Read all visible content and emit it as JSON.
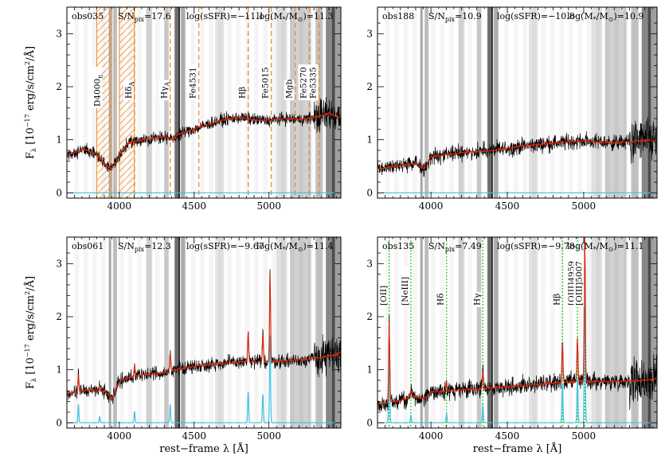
{
  "chart_data": [
    {
      "type": "line",
      "panel": "top-left",
      "object_id": "obs035",
      "sn_label": "S/N",
      "sn_sub": "pix",
      "sn_value": "=17.6",
      "ssfr_text": "log(sSFR)=−11.1",
      "mass_pre": "log(M",
      "mass_sub1": "*",
      "mass_mid": "/M",
      "mass_sub2": "⊙",
      "mass_post": ")=11.3",
      "xlim": [
        3650,
        5480
      ],
      "ylim": [
        -0.1,
        3.5
      ],
      "xticks": [
        4000,
        4500,
        5000
      ],
      "yticks": [
        0,
        1,
        2,
        3
      ],
      "ylabel_main": "F",
      "ylabel_sub": "λ",
      "ylabel_rest": " [10",
      "ylabel_exp": "−17",
      "ylabel_tail": " erg/s/cm",
      "ylabel_exp2": "2",
      "ylabel_end": "/Å]",
      "xlabel": "",
      "continuum_knots": [
        [
          3660,
          0.72
        ],
        [
          3760,
          0.82
        ],
        [
          3840,
          0.74
        ],
        [
          3900,
          0.55
        ],
        [
          3950,
          0.45
        ],
        [
          3980,
          0.6
        ],
        [
          4050,
          0.92
        ],
        [
          4100,
          0.97
        ],
        [
          4200,
          1.02
        ],
        [
          4300,
          1.06
        ],
        [
          4360,
          1.0
        ],
        [
          4400,
          1.12
        ],
        [
          4500,
          1.2
        ],
        [
          4600,
          1.3
        ],
        [
          4700,
          1.38
        ],
        [
          4800,
          1.42
        ],
        [
          4900,
          1.38
        ],
        [
          5000,
          1.36
        ],
        [
          5100,
          1.4
        ],
        [
          5200,
          1.38
        ],
        [
          5300,
          1.42
        ],
        [
          5400,
          1.5
        ],
        [
          5480,
          1.42
        ]
      ],
      "noise": 0.07,
      "emission_lines": [],
      "hatched_bands": [
        [
          3850,
          3950
        ],
        [
          4000,
          4100
        ]
      ],
      "orange_lines": [
        {
          "x": 4102,
          "label": "Hδ",
          "sub": "A"
        },
        {
          "x": 4340,
          "label": "Hγ",
          "sub": "A"
        },
        {
          "x": 4531,
          "label": "Fe4531",
          "sub": ""
        },
        {
          "x": 4861,
          "label": "Hβ",
          "sub": ""
        },
        {
          "x": 5015,
          "label": "Fe5015",
          "sub": ""
        },
        {
          "x": 5175,
          "label": "Mgb",
          "sub": ""
        },
        {
          "x": 5270,
          "label": "Fe5270",
          "sub": ""
        },
        {
          "x": 5335,
          "label": "Fe5335",
          "sub": ""
        }
      ],
      "band_label": {
        "label": "D4000",
        "sub": "n",
        "x": 3860
      },
      "green_lines": []
    },
    {
      "type": "line",
      "panel": "top-right",
      "object_id": "obs188",
      "sn_label": "S/N",
      "sn_sub": "pix",
      "sn_value": "=10.9",
      "ssfr_text": "log(sSFR)=−10.8",
      "mass_pre": "log(M",
      "mass_sub1": "*",
      "mass_mid": "/M",
      "mass_sub2": "⊙",
      "mass_post": ")=10.9",
      "xlim": [
        3650,
        5480
      ],
      "ylim": [
        -0.1,
        3.5
      ],
      "xticks": [
        4000,
        4500,
        5000
      ],
      "yticks": [
        0,
        1,
        2,
        3
      ],
      "xlabel": "",
      "continuum_knots": [
        [
          3660,
          0.45
        ],
        [
          3800,
          0.52
        ],
        [
          3900,
          0.55
        ],
        [
          3960,
          0.45
        ],
        [
          4000,
          0.68
        ],
        [
          4200,
          0.76
        ],
        [
          4400,
          0.8
        ],
        [
          4600,
          0.88
        ],
        [
          4800,
          0.94
        ],
        [
          5000,
          0.98
        ],
        [
          5200,
          0.94
        ],
        [
          5350,
          0.98
        ],
        [
          5480,
          1.0
        ]
      ],
      "noise": 0.09,
      "emission_lines": [],
      "hatched_bands": [],
      "orange_lines": [],
      "green_lines": []
    },
    {
      "type": "line",
      "panel": "bottom-left",
      "object_id": "obs061",
      "sn_label": "S/N",
      "sn_sub": "pix",
      "sn_value": "=12.3",
      "ssfr_text": "log(sSFR)=−9.67",
      "mass_pre": "log(M",
      "mass_sub1": "*",
      "mass_mid": "/M",
      "mass_sub2": "⊙",
      "mass_post": ")=11.4",
      "xlim": [
        3650,
        5480
      ],
      "ylim": [
        -0.1,
        3.5
      ],
      "xticks": [
        4000,
        4500,
        5000
      ],
      "yticks": [
        0,
        1,
        2,
        3
      ],
      "ylabel_main": "F",
      "ylabel_sub": "λ",
      "ylabel_rest": " [10",
      "ylabel_exp": "−17",
      "ylabel_tail": " erg/s/cm",
      "ylabel_exp2": "2",
      "ylabel_end": "/Å]",
      "xlabel_main": "rest−frame λ [Å]",
      "continuum_knots": [
        [
          3660,
          0.55
        ],
        [
          3800,
          0.62
        ],
        [
          3900,
          0.6
        ],
        [
          3950,
          0.45
        ],
        [
          4000,
          0.78
        ],
        [
          4100,
          0.88
        ],
        [
          4300,
          0.95
        ],
        [
          4400,
          1.02
        ],
        [
          4600,
          1.1
        ],
        [
          4800,
          1.15
        ],
        [
          5000,
          1.15
        ],
        [
          5200,
          1.18
        ],
        [
          5400,
          1.25
        ],
        [
          5480,
          1.32
        ]
      ],
      "noise": 0.08,
      "emission_lines": [
        [
          3727,
          0.35
        ],
        [
          3869,
          0.12
        ],
        [
          4102,
          0.22
        ],
        [
          4340,
          0.35
        ],
        [
          4861,
          0.6
        ],
        [
          4959,
          0.55
        ],
        [
          5007,
          1.72
        ]
      ],
      "hatched_bands": [],
      "orange_lines": [],
      "green_lines": []
    },
    {
      "type": "line",
      "panel": "bottom-right",
      "object_id": "obs135",
      "sn_label": "S/N",
      "sn_sub": "pix",
      "sn_value": "=7.49",
      "ssfr_text": "log(sSFR)=−9.78",
      "mass_pre": "log(M",
      "mass_sub1": "*",
      "mass_mid": "/M",
      "mass_sub2": "⊙",
      "mass_post": ")=11.1",
      "xlim": [
        3650,
        5480
      ],
      "ylim": [
        -0.1,
        3.5
      ],
      "xticks": [
        4000,
        4500,
        5000
      ],
      "yticks": [
        0,
        1,
        2,
        3
      ],
      "xlabel_main": "rest−frame λ [Å]",
      "continuum_knots": [
        [
          3660,
          0.35
        ],
        [
          3800,
          0.42
        ],
        [
          3900,
          0.5
        ],
        [
          3960,
          0.45
        ],
        [
          4000,
          0.58
        ],
        [
          4200,
          0.62
        ],
        [
          4400,
          0.66
        ],
        [
          4600,
          0.7
        ],
        [
          4800,
          0.75
        ],
        [
          5000,
          0.78
        ],
        [
          5200,
          0.78
        ],
        [
          5400,
          0.8
        ],
        [
          5480,
          0.82
        ]
      ],
      "noise": 0.1,
      "emission_lines": [
        [
          3727,
          1.6
        ],
        [
          3869,
          0.15
        ],
        [
          4102,
          0.18
        ],
        [
          4340,
          0.35
        ],
        [
          4861,
          0.78
        ],
        [
          4959,
          0.85
        ],
        [
          5007,
          2.95
        ]
      ],
      "hatched_bands": [],
      "orange_lines": [],
      "green_lines": [
        {
          "x": 3727,
          "label": "[OII]"
        },
        {
          "x": 3869,
          "label": "[NeIII]"
        },
        {
          "x": 4102,
          "label": "Hδ"
        },
        {
          "x": 4340,
          "label": "Hγ"
        },
        {
          "x": 4861,
          "label": "Hβ"
        },
        {
          "x": 4959,
          "label": "[OIII]4959"
        },
        {
          "x": 5007,
          "label": "[OIII]5007"
        }
      ]
    }
  ],
  "colors": {
    "spectrum": "#000000",
    "model": "#d42a10",
    "emission": "#3ec0e0",
    "index_lines": "#f08a24",
    "hatch": "#f08a24",
    "emission_markers": "#29cc29"
  }
}
